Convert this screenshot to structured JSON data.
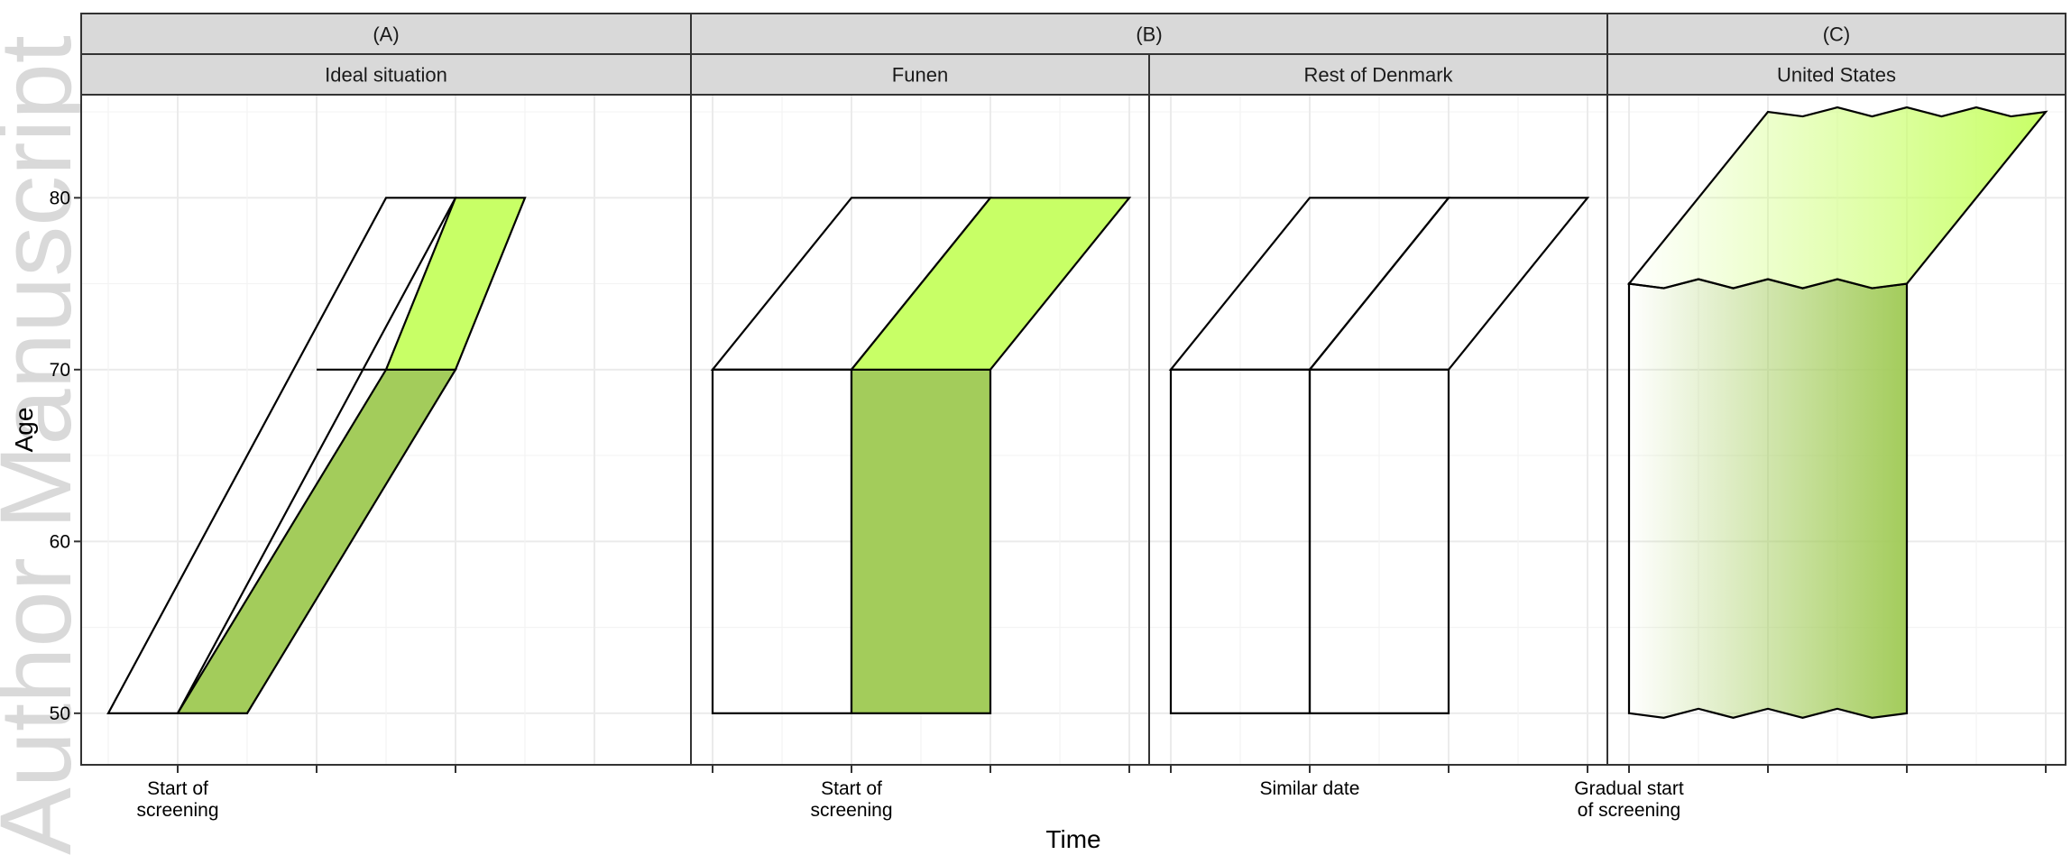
{
  "watermark": "Author Manuscript",
  "chart_data": {
    "type": "area",
    "xlabel": "Time",
    "ylabel": "Age",
    "ylim": [
      47,
      86
    ],
    "yticks": [
      50,
      60,
      70,
      80
    ],
    "grid": true,
    "colors": {
      "light": "#c8ff66",
      "dark": "#a3cc5b",
      "strip_bg": "#d9d9d9",
      "border": "#333333"
    },
    "groups": [
      {
        "label": "(A)",
        "panels": [
          "ideal"
        ]
      },
      {
        "label": "(B)",
        "panels": [
          "funen",
          "rest"
        ]
      },
      {
        "label": "(C)",
        "panels": [
          "us"
        ]
      }
    ],
    "panels": [
      {
        "id": "ideal",
        "label": "Ideal situation",
        "xticks": [
          {
            "x": 1,
            "label": "Start of\nscreening"
          },
          {
            "x": 3,
            "label": ""
          },
          {
            "x": 5,
            "label": ""
          }
        ],
        "shapes": [
          {
            "fill": "none",
            "points": [
              [
                0,
                50
              ],
              [
                1,
                50
              ],
              [
                5,
                80
              ],
              [
                4,
                80
              ]
            ]
          },
          {
            "fill": "dark",
            "points": [
              [
                1,
                50
              ],
              [
                2,
                50
              ],
              [
                5,
                70
              ],
              [
                4,
                70
              ]
            ]
          },
          {
            "fill": "light",
            "points": [
              [
                4,
                70
              ],
              [
                5,
                70
              ],
              [
                6,
                80
              ],
              [
                5,
                80
              ]
            ]
          },
          {
            "fill": "none",
            "points": [
              [
                3,
                70
              ],
              [
                4,
                70
              ]
            ]
          }
        ]
      },
      {
        "id": "funen",
        "label": "Funen",
        "xticks": [
          {
            "x": 0,
            "label": ""
          },
          {
            "x": 1,
            "label": "Start of\nscreening"
          },
          {
            "x": 2,
            "label": ""
          },
          {
            "x": 3,
            "label": ""
          }
        ],
        "shapes": [
          {
            "fill": "none",
            "points": [
              [
                0,
                50
              ],
              [
                1,
                50
              ],
              [
                1,
                70
              ],
              [
                0,
                70
              ]
            ]
          },
          {
            "fill": "dark",
            "points": [
              [
                1,
                50
              ],
              [
                2,
                50
              ],
              [
                2,
                70
              ],
              [
                1,
                70
              ]
            ]
          },
          {
            "fill": "none",
            "points": [
              [
                0,
                70
              ],
              [
                1,
                70
              ],
              [
                2,
                80
              ],
              [
                1,
                80
              ]
            ]
          },
          {
            "fill": "light",
            "points": [
              [
                1,
                70
              ],
              [
                2,
                70
              ],
              [
                3,
                80
              ],
              [
                2,
                80
              ]
            ]
          }
        ]
      },
      {
        "id": "rest",
        "label": "Rest of Denmark",
        "xticks": [
          {
            "x": 0,
            "label": ""
          },
          {
            "x": 1,
            "label": "Similar date"
          },
          {
            "x": 2,
            "label": ""
          },
          {
            "x": 3,
            "label": ""
          }
        ],
        "shapes": [
          {
            "fill": "none",
            "points": [
              [
                0,
                50
              ],
              [
                1,
                50
              ],
              [
                1,
                70
              ],
              [
                0,
                70
              ]
            ]
          },
          {
            "fill": "none",
            "points": [
              [
                1,
                50
              ],
              [
                2,
                50
              ],
              [
                2,
                70
              ],
              [
                1,
                70
              ]
            ]
          },
          {
            "fill": "none",
            "points": [
              [
                0,
                70
              ],
              [
                1,
                70
              ],
              [
                2,
                80
              ],
              [
                1,
                80
              ]
            ]
          },
          {
            "fill": "none",
            "points": [
              [
                1,
                70
              ],
              [
                2,
                70
              ],
              [
                3,
                80
              ],
              [
                2,
                80
              ]
            ]
          }
        ]
      },
      {
        "id": "us",
        "label": "United States",
        "xticks": [
          {
            "x": 0,
            "label": "Gradual start\nof screening"
          },
          {
            "x": 1,
            "label": ""
          },
          {
            "x": 2,
            "label": ""
          },
          {
            "x": 3,
            "label": ""
          }
        ],
        "shapes": [
          {
            "fill": "gradient-dark",
            "wavy": true,
            "points": [
              [
                0,
                50
              ],
              [
                2,
                50
              ],
              [
                2,
                75
              ],
              [
                0,
                75
              ]
            ]
          },
          {
            "fill": "gradient-light",
            "wavy": true,
            "points": [
              [
                0,
                75
              ],
              [
                2,
                75
              ],
              [
                3,
                85
              ],
              [
                1,
                85
              ]
            ]
          }
        ]
      }
    ]
  }
}
